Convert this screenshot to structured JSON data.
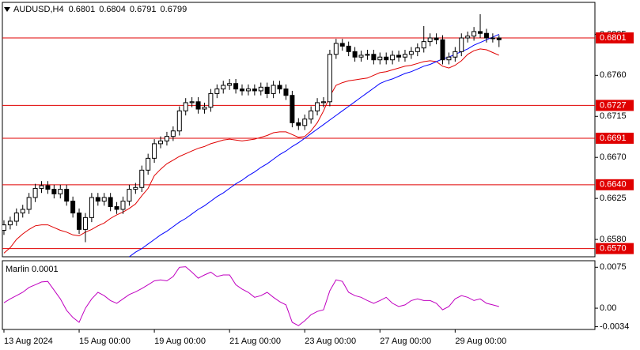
{
  "chart_data": [
    {
      "type": "candlestick",
      "title": "AUDUSD,H4",
      "open": [
        0.659,
        0.6596,
        0.66,
        0.6609,
        0.6613,
        0.6626,
        0.6636,
        0.6639,
        0.6635,
        0.663,
        0.6635,
        0.6622,
        0.6609,
        0.6591,
        0.6604,
        0.6626,
        0.6622,
        0.6626,
        0.6616,
        0.6613,
        0.6622,
        0.6635,
        0.6637,
        0.6656,
        0.6669,
        0.6685,
        0.6688,
        0.6693,
        0.6699,
        0.6721,
        0.673,
        0.6731,
        0.6723,
        0.6725,
        0.674,
        0.6745,
        0.6749,
        0.6751,
        0.6745,
        0.6743,
        0.6745,
        0.6743,
        0.6747,
        0.674,
        0.6749,
        0.6745,
        0.6738,
        0.6708,
        0.6705,
        0.6712,
        0.6721,
        0.673,
        0.6731,
        0.6783,
        0.6795,
        0.6792,
        0.6786,
        0.678,
        0.6782,
        0.6783,
        0.6777,
        0.678,
        0.6777,
        0.6782,
        0.678,
        0.6783,
        0.6786,
        0.679,
        0.6797,
        0.6801,
        0.6799,
        0.6777,
        0.678,
        0.6786,
        0.6801,
        0.6803,
        0.6808,
        0.6806,
        0.6801,
        0.6801
      ],
      "high": [
        0.6601,
        0.6605,
        0.6614,
        0.6618,
        0.6631,
        0.6641,
        0.6644,
        0.6644,
        0.664,
        0.664,
        0.664,
        0.6627,
        0.6614,
        0.6609,
        0.6631,
        0.6631,
        0.6631,
        0.6631,
        0.6621,
        0.6627,
        0.664,
        0.6642,
        0.6661,
        0.6674,
        0.669,
        0.6693,
        0.6698,
        0.6704,
        0.6726,
        0.6735,
        0.6736,
        0.6736,
        0.673,
        0.6745,
        0.675,
        0.6754,
        0.6756,
        0.6756,
        0.675,
        0.675,
        0.675,
        0.6752,
        0.6752,
        0.6754,
        0.6754,
        0.675,
        0.6743,
        0.6713,
        0.6717,
        0.6726,
        0.6735,
        0.6736,
        0.6788,
        0.68,
        0.68,
        0.6797,
        0.6791,
        0.6787,
        0.6788,
        0.6788,
        0.6785,
        0.6785,
        0.6787,
        0.6787,
        0.6788,
        0.6791,
        0.6795,
        0.6814,
        0.6806,
        0.6806,
        0.6804,
        0.6785,
        0.6791,
        0.6806,
        0.6808,
        0.6813,
        0.6827,
        0.6811,
        0.6806,
        0.6804
      ],
      "low": [
        0.6585,
        0.6591,
        0.6595,
        0.6604,
        0.6608,
        0.6621,
        0.6631,
        0.663,
        0.6625,
        0.6625,
        0.6617,
        0.6604,
        0.6586,
        0.6577,
        0.6599,
        0.6617,
        0.6617,
        0.6611,
        0.6608,
        0.6608,
        0.6617,
        0.663,
        0.6632,
        0.6651,
        0.6664,
        0.668,
        0.6683,
        0.6688,
        0.6694,
        0.6716,
        0.6725,
        0.6718,
        0.6718,
        0.672,
        0.6735,
        0.674,
        0.6744,
        0.674,
        0.6738,
        0.6738,
        0.6738,
        0.6738,
        0.6735,
        0.6735,
        0.674,
        0.6733,
        0.6703,
        0.67,
        0.67,
        0.6707,
        0.6716,
        0.6725,
        0.6726,
        0.6778,
        0.6787,
        0.6781,
        0.6775,
        0.6775,
        0.6777,
        0.6772,
        0.6772,
        0.6772,
        0.6772,
        0.6775,
        0.6775,
        0.6778,
        0.6781,
        0.6785,
        0.6792,
        0.6794,
        0.6772,
        0.6772,
        0.6775,
        0.6781,
        0.6796,
        0.6798,
        0.6801,
        0.6796,
        0.6796,
        0.6791
      ],
      "close": [
        0.6596,
        0.66,
        0.6609,
        0.6613,
        0.6626,
        0.6636,
        0.6639,
        0.6635,
        0.663,
        0.6635,
        0.6622,
        0.6609,
        0.6591,
        0.6604,
        0.6626,
        0.6622,
        0.6626,
        0.6616,
        0.6613,
        0.6622,
        0.6635,
        0.6637,
        0.6656,
        0.6669,
        0.6685,
        0.6688,
        0.6693,
        0.6699,
        0.6721,
        0.673,
        0.6731,
        0.6723,
        0.6725,
        0.674,
        0.6745,
        0.6749,
        0.6751,
        0.6745,
        0.6743,
        0.6745,
        0.6743,
        0.6747,
        0.674,
        0.6749,
        0.6745,
        0.6738,
        0.6708,
        0.6705,
        0.6712,
        0.6721,
        0.673,
        0.6731,
        0.6783,
        0.6795,
        0.6792,
        0.6786,
        0.678,
        0.6782,
        0.6783,
        0.6777,
        0.678,
        0.6777,
        0.6782,
        0.678,
        0.6783,
        0.6786,
        0.679,
        0.6797,
        0.6801,
        0.6799,
        0.6777,
        0.678,
        0.6786,
        0.6801,
        0.6803,
        0.6808,
        0.6806,
        0.6801,
        0.6801,
        0.6799
      ],
      "lines": [
        {
          "color": "#e00000",
          "values": [
            0.6565,
            0.6571,
            0.658,
            0.6586,
            0.6591,
            0.6595,
            0.6596,
            0.6596,
            0.6593,
            0.659,
            0.6588,
            0.6585,
            0.6584,
            0.6588,
            0.6591,
            0.6595,
            0.6598,
            0.6603,
            0.6607,
            0.661,
            0.6614,
            0.6619,
            0.6628,
            0.6636,
            0.665,
            0.6657,
            0.6663,
            0.6667,
            0.6671,
            0.6674,
            0.6677,
            0.668,
            0.6682,
            0.6685,
            0.6687,
            0.6689,
            0.669,
            0.6689,
            0.6688,
            0.6689,
            0.669,
            0.6692,
            0.6694,
            0.6697,
            0.6698,
            0.6698,
            0.6695,
            0.6692,
            0.6693,
            0.6699,
            0.6708,
            0.6721,
            0.6737,
            0.6749,
            0.6752,
            0.6754,
            0.6755,
            0.6756,
            0.6757,
            0.676,
            0.6763,
            0.6764,
            0.6766,
            0.6768,
            0.677,
            0.6771,
            0.6773,
            0.6775,
            0.6776,
            0.6775,
            0.677,
            0.6768,
            0.6771,
            0.6776,
            0.6783,
            0.6787,
            0.6789,
            0.6788,
            0.6785,
            0.6782
          ]
        },
        {
          "color": "#0000ff",
          "values": [
            null,
            null,
            null,
            null,
            null,
            null,
            null,
            null,
            null,
            null,
            null,
            null,
            null,
            null,
            null,
            null,
            null,
            null,
            null,
            null,
            0.6561,
            0.6566,
            0.657,
            0.6575,
            0.658,
            0.6585,
            0.6589,
            0.6594,
            0.6599,
            0.6603,
            0.6608,
            0.6613,
            0.6617,
            0.6622,
            0.6627,
            0.6631,
            0.6636,
            0.6641,
            0.6645,
            0.665,
            0.6654,
            0.6659,
            0.6663,
            0.6668,
            0.6673,
            0.6677,
            0.6682,
            0.6686,
            0.6691,
            0.6696,
            0.6701,
            0.6706,
            0.6711,
            0.6716,
            0.6721,
            0.6726,
            0.6731,
            0.6736,
            0.6741,
            0.6746,
            0.6751,
            0.6754,
            0.6756,
            0.6759,
            0.6762,
            0.6764,
            0.6767,
            0.677,
            0.6772,
            0.6775,
            0.6778,
            0.678,
            0.6783,
            0.6786,
            0.6789,
            0.6793,
            0.6796,
            0.6799,
            0.6802,
            0.6805
          ]
        }
      ],
      "levels": [
        0.6801,
        0.6727,
        0.6691,
        {
          "value": 0.664,
          "label": "0.6640"
        },
        {
          "value": 0.657,
          "label": "0.6570"
        }
      ],
      "level_color": "#e00000",
      "ylim": [
        0.6561,
        0.684
      ],
      "yticks": [
        0.6805,
        {
          "value": 0.676,
          "label": "0.6760"
        },
        0.6715,
        {
          "value": 0.667,
          "label": "0.6670"
        },
        0.6625,
        {
          "value": 0.658,
          "label": "0.6580"
        }
      ],
      "xlim": [
        -0.25,
        94.3
      ],
      "xticks": [
        {
          "value": 0,
          "label": "13 Aug 2024"
        },
        {
          "value": 12,
          "label": "15 Aug 00:00"
        },
        {
          "value": 24,
          "label": "19 Aug 00:00"
        },
        {
          "value": 36,
          "label": "21 Aug 00:00"
        },
        {
          "value": 48,
          "label": "23 Aug 00:00"
        },
        {
          "value": 60,
          "label": "27 Aug 00:00"
        },
        {
          "value": 72,
          "label": "29 Aug 00:00"
        }
      ]
    },
    {
      "type": "line",
      "title": "Marlin 0.0001",
      "color": "#c000c0",
      "values": [
        0.001,
        0.0017,
        0.0023,
        0.0029,
        0.0038,
        0.0043,
        0.0048,
        0.0049,
        0.0033,
        0.0017,
        -0.0004,
        -0.0017,
        -0.0026,
        0.0,
        0.0017,
        0.0029,
        0.0023,
        0.0014,
        0.0009,
        0.0017,
        0.0025,
        0.003,
        0.0036,
        0.0043,
        0.005,
        0.0052,
        0.005,
        0.0058,
        0.0075,
        0.0076,
        0.0066,
        0.0055,
        0.0061,
        0.0066,
        0.0058,
        0.0061,
        0.0061,
        0.0043,
        0.0035,
        0.0029,
        0.002,
        0.0023,
        0.0029,
        0.002,
        0.0012,
        0.0006,
        -0.0026,
        -0.0032,
        -0.0023,
        -0.0012,
        -0.0006,
        -0.0003,
        0.0032,
        0.0052,
        0.0049,
        0.0029,
        0.0023,
        0.002,
        0.0014,
        0.0009,
        0.0014,
        0.002,
        0.0009,
        0.0003,
        0.0006,
        0.0014,
        0.0017,
        0.0014,
        0.0014,
        0.0009,
        -0.0003,
        0.0003,
        0.0017,
        0.0023,
        0.002,
        0.0014,
        0.0017,
        0.0009,
        0.0006,
        0.0003
      ],
      "ylim": [
        -0.0039,
        0.0087
      ],
      "yticks": [
        0.0075,
        {
          "value": 0,
          "label": "0.00"
        },
        -0.0034
      ]
    }
  ]
}
